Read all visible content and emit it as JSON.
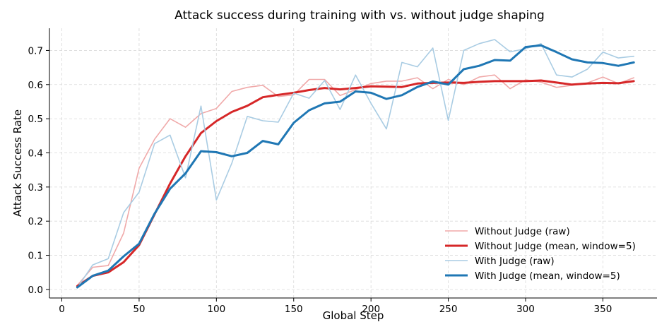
{
  "chart_data": {
    "type": "line",
    "title": "Attack success during training with vs. without judge shaping",
    "xlabel": "Global Step",
    "ylabel": "Attack Success Rate",
    "xlim": [
      -8,
      385
    ],
    "ylim": [
      -0.025,
      0.765
    ],
    "xticks": [
      0,
      50,
      100,
      150,
      200,
      250,
      300,
      350
    ],
    "yticks": [
      0.0,
      0.1,
      0.2,
      0.3,
      0.4,
      0.5,
      0.6,
      0.7
    ],
    "ytick_labels": [
      "0.0",
      "0.1",
      "0.2",
      "0.3",
      "0.4",
      "0.5",
      "0.6",
      "0.7"
    ],
    "grid": true,
    "legend_position": "lower-right",
    "x": [
      10,
      20,
      30,
      40,
      50,
      60,
      70,
      80,
      90,
      100,
      110,
      120,
      130,
      140,
      150,
      160,
      170,
      180,
      190,
      200,
      210,
      220,
      230,
      240,
      250,
      260,
      270,
      280,
      290,
      300,
      310,
      320,
      330,
      340,
      350,
      360,
      370
    ],
    "series": [
      {
        "name": "Without Judge (raw)",
        "color": "#f0a9a9",
        "width": 1.6,
        "values": [
          0.012,
          0.065,
          0.07,
          0.165,
          0.355,
          0.44,
          0.5,
          0.475,
          0.515,
          0.53,
          0.58,
          0.592,
          0.598,
          0.565,
          0.57,
          0.615,
          0.615,
          0.568,
          0.585,
          0.603,
          0.61,
          0.61,
          0.62,
          0.588,
          0.615,
          0.6,
          0.622,
          0.628,
          0.588,
          0.614,
          0.607,
          0.592,
          0.598,
          0.605,
          0.622,
          0.603,
          0.62
        ]
      },
      {
        "name": "Without Judge (mean, window=5)",
        "color": "#d62728",
        "width": 3,
        "values": [
          0.01,
          0.04,
          0.05,
          0.08,
          0.13,
          0.22,
          0.31,
          0.39,
          0.458,
          0.493,
          0.52,
          0.538,
          0.563,
          0.57,
          0.576,
          0.584,
          0.59,
          0.586,
          0.59,
          0.595,
          0.594,
          0.593,
          0.603,
          0.605,
          0.606,
          0.605,
          0.608,
          0.61,
          0.61,
          0.61,
          0.612,
          0.606,
          0.6,
          0.603,
          0.605,
          0.604,
          0.61
        ]
      },
      {
        "name": "With Judge (raw)",
        "color": "#a9cce3",
        "width": 1.6,
        "values": [
          0.005,
          0.072,
          0.09,
          0.225,
          0.285,
          0.427,
          0.452,
          0.327,
          0.537,
          0.262,
          0.37,
          0.507,
          0.494,
          0.49,
          0.575,
          0.56,
          0.612,
          0.527,
          0.628,
          0.545,
          0.47,
          0.665,
          0.652,
          0.707,
          0.495,
          0.7,
          0.72,
          0.732,
          0.696,
          0.705,
          0.72,
          0.628,
          0.622,
          0.645,
          0.695,
          0.678,
          0.683
        ]
      },
      {
        "name": "With Judge (mean, window=5)",
        "color": "#1f77b4",
        "width": 3,
        "values": [
          0.006,
          0.04,
          0.055,
          0.097,
          0.134,
          0.222,
          0.295,
          0.34,
          0.405,
          0.402,
          0.39,
          0.4,
          0.435,
          0.425,
          0.488,
          0.525,
          0.545,
          0.55,
          0.58,
          0.576,
          0.558,
          0.569,
          0.593,
          0.609,
          0.6,
          0.645,
          0.655,
          0.672,
          0.67,
          0.71,
          0.715,
          0.695,
          0.674,
          0.665,
          0.663,
          0.655,
          0.665
        ]
      }
    ]
  }
}
